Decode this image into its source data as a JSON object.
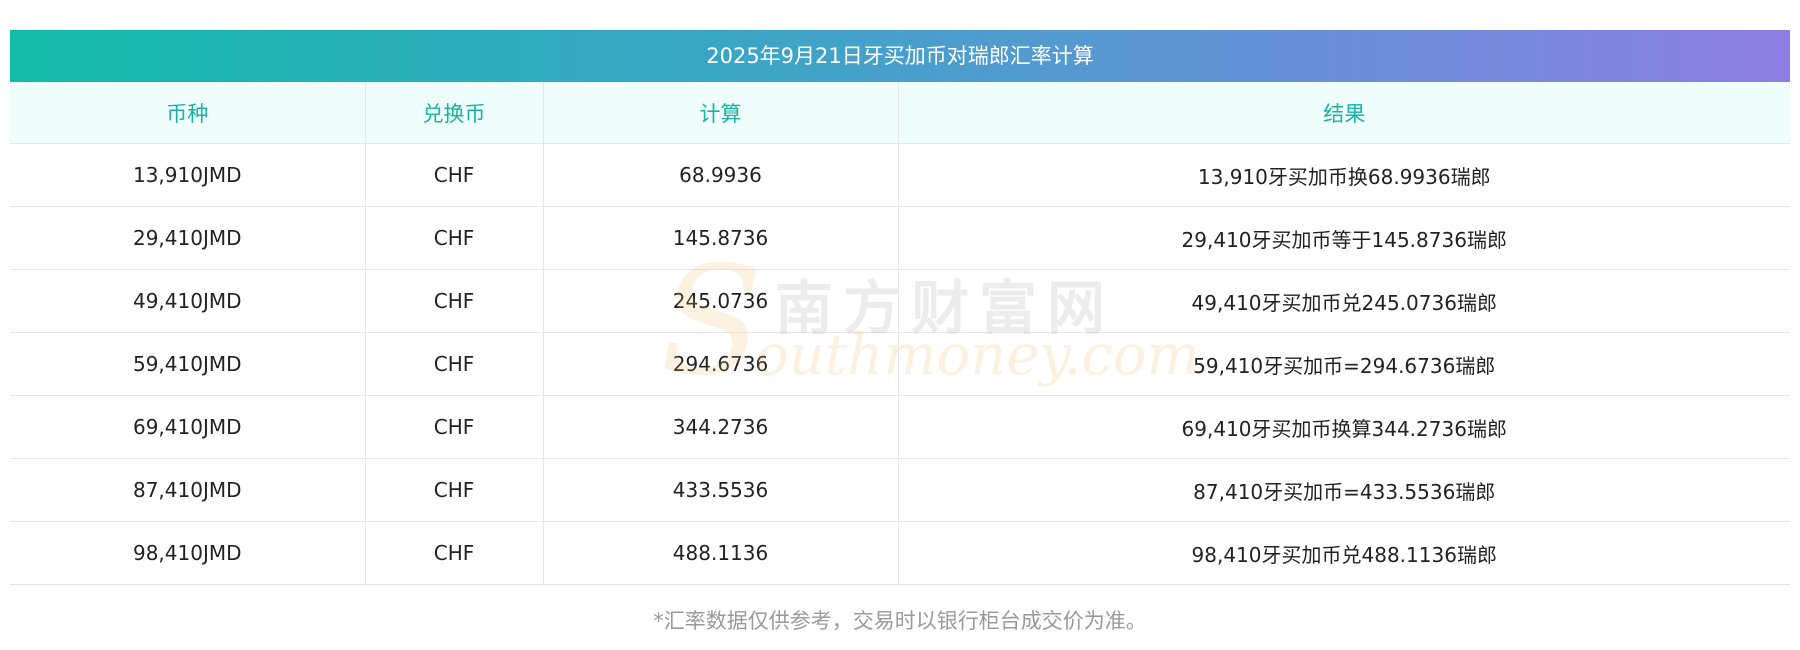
{
  "title": "2025年9月21日牙买加币对瑞郎汇率计算",
  "table": {
    "headers": [
      "币种",
      "兑换币",
      "计算",
      "结果"
    ],
    "rows": [
      {
        "currency": "13,910JMD",
        "target": "CHF",
        "calc": "68.9936",
        "result": "13,910牙买加币换68.9936瑞郎"
      },
      {
        "currency": "29,410JMD",
        "target": "CHF",
        "calc": "145.8736",
        "result": "29,410牙买加币等于145.8736瑞郎"
      },
      {
        "currency": "49,410JMD",
        "target": "CHF",
        "calc": "245.0736",
        "result": "49,410牙买加币兑245.0736瑞郎"
      },
      {
        "currency": "59,410JMD",
        "target": "CHF",
        "calc": "294.6736",
        "result": "59,410牙买加币=294.6736瑞郎"
      },
      {
        "currency": "69,410JMD",
        "target": "CHF",
        "calc": "344.2736",
        "result": "69,410牙买加币换算344.2736瑞郎"
      },
      {
        "currency": "87,410JMD",
        "target": "CHF",
        "calc": "433.5536",
        "result": "87,410牙买加币=433.5536瑞郎"
      },
      {
        "currency": "98,410JMD",
        "target": "CHF",
        "calc": "488.1136",
        "result": "98,410牙买加币兑488.1136瑞郎"
      }
    ]
  },
  "note": "*汇率数据仅供参考，交易时以银行柜台成交价为准。",
  "watermark": {
    "cn": "南方财富网",
    "en": "outhmoney.com",
    "s": "S"
  },
  "colors": {
    "accent": "#18b3a6",
    "header_bg": "#effdfd",
    "gradient_start": "#12bba9",
    "gradient_end": "#8e7ee3"
  }
}
